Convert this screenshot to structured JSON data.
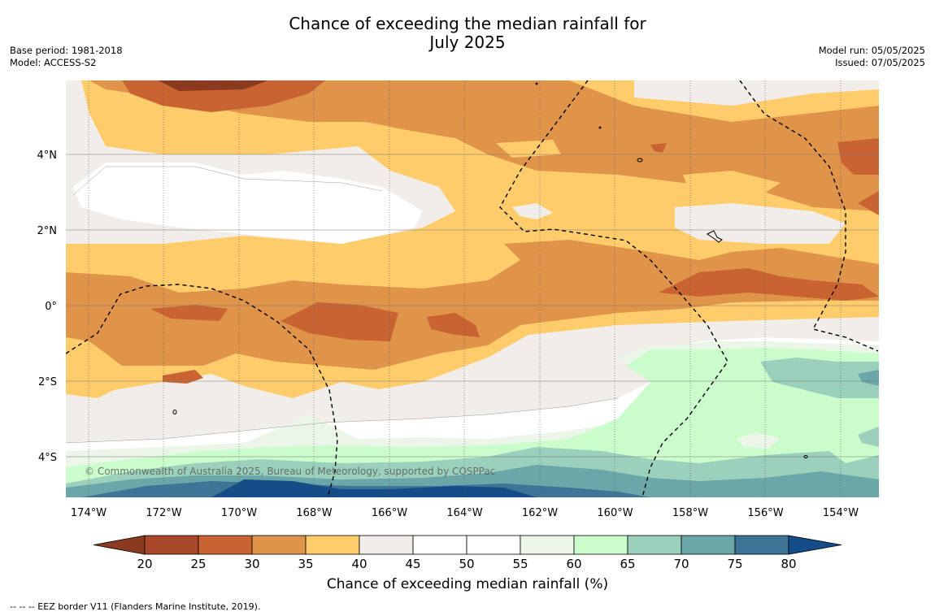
{
  "title_line1": "Chance of exceeding the median rainfall for",
  "title_line2": "July 2025",
  "meta_left": {
    "base_period": "Base period: 1981-2018",
    "model": "Model: ACCESS-S2"
  },
  "meta_right": {
    "model_run": "Model run: 05/05/2025",
    "issued": "Issued: 07/05/2025"
  },
  "copyright": "© Commonwealth of Australia 2025, Bureau of Meteorology, supported by COSPPac",
  "colorbar_label": "Chance of exceeding median rainfall (%)",
  "footnote": "--  --  -- EEZ border V11 (Flanders Marine Institute, 2019).",
  "longitude_ticks": [
    "174°W",
    "172°W",
    "170°W",
    "168°W",
    "166°W",
    "164°W",
    "162°W",
    "160°W",
    "158°W",
    "156°W",
    "154°W"
  ],
  "latitude_ticks": [
    "4°N",
    "2°N",
    "0°",
    "2°S",
    "4°S"
  ],
  "colorbar": {
    "ticks": [
      "20",
      "25",
      "30",
      "35",
      "40",
      "45",
      "50",
      "55",
      "60",
      "65",
      "70",
      "75",
      "80"
    ],
    "colors": [
      "#8b3a1f",
      "#a9472a",
      "#c96432",
      "#e09449",
      "#ffcc6c",
      "#f1ede8",
      "#ffffff",
      "#ffffff",
      "#ebf6e8",
      "#cbfccb",
      "#9bd1bc",
      "#6ba7a8",
      "#3e7597",
      "#154d88"
    ]
  },
  "chart_data": {
    "type": "heatmap",
    "title": "Chance of exceeding the median rainfall for July 2025",
    "value_unit": "%",
    "xlabel": "",
    "ylabel": "",
    "x_ticks": [
      "174°W",
      "172°W",
      "170°W",
      "168°W",
      "166°W",
      "164°W",
      "162°W",
      "160°W",
      "158°W",
      "156°W",
      "154°W"
    ],
    "y_ticks": [
      "4°N",
      "2°N",
      "0°",
      "2°S",
      "4°S"
    ],
    "color_levels": [
      20,
      25,
      30,
      35,
      40,
      45,
      50,
      55,
      60,
      65,
      70,
      75,
      80
    ]
  }
}
